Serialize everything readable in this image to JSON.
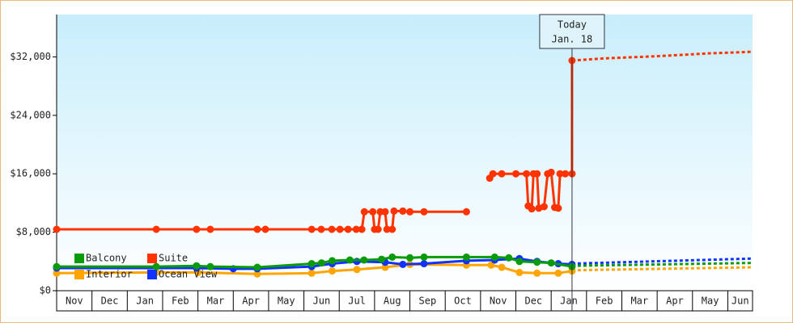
{
  "chart_data": {
    "type": "line",
    "xlim": [
      0,
      19.7
    ],
    "xticks": [
      {
        "value": 0,
        "label": "Nov"
      },
      {
        "value": 1,
        "label": "Dec"
      },
      {
        "value": 2,
        "label": "Jan"
      },
      {
        "value": 3,
        "label": "Feb"
      },
      {
        "value": 4,
        "label": "Mar"
      },
      {
        "value": 5,
        "label": "Apr"
      },
      {
        "value": 6,
        "label": "May"
      },
      {
        "value": 7,
        "label": "Jun"
      },
      {
        "value": 8,
        "label": "Jul"
      },
      {
        "value": 9,
        "label": "Aug"
      },
      {
        "value": 10,
        "label": "Sep"
      },
      {
        "value": 11,
        "label": "Oct"
      },
      {
        "value": 12,
        "label": "Nov"
      },
      {
        "value": 13,
        "label": "Dec"
      },
      {
        "value": 14,
        "label": "Jan"
      },
      {
        "value": 15,
        "label": "Feb"
      },
      {
        "value": 16,
        "label": "Mar"
      },
      {
        "value": 17,
        "label": "Apr"
      },
      {
        "value": 18,
        "label": "May"
      },
      {
        "value": 19,
        "label": "Jun"
      }
    ],
    "ylim": [
      0,
      37800
    ],
    "yticks": [
      {
        "value": 0,
        "label": "$0"
      },
      {
        "value": 8000,
        "label": "$8,000"
      },
      {
        "value": 16000,
        "label": "$16,000"
      },
      {
        "value": 24000,
        "label": "$24,000"
      },
      {
        "value": 32000,
        "label": "$32,000"
      }
    ],
    "legend": "lower left",
    "annotation": {
      "x": 14.59,
      "lines": [
        "Today",
        "Jan. 18"
      ]
    },
    "series": [
      {
        "name": "Balcony",
        "color": "#0a9a0a",
        "x": [
          0,
          2.82,
          3.96,
          4.35,
          5.68,
          7.22,
          7.5,
          7.8,
          8.3,
          8.7,
          9.2,
          9.5,
          10.0,
          10.4,
          11.6,
          12.4,
          12.8,
          13.1,
          13.6,
          14.0,
          14.59
        ],
        "values": [
          3300,
          3300,
          3400,
          3300,
          3200,
          3700,
          3800,
          4100,
          4200,
          4200,
          4300,
          4600,
          4500,
          4600,
          4600,
          4600,
          4500,
          4000,
          3900,
          3800,
          3300
        ],
        "forecast": {
          "x": [
            14.59,
            19.7
          ],
          "values": [
            3400,
            3800
          ]
        }
      },
      {
        "name": "Suite",
        "color": "#ff3300",
        "x": [
          0,
          2.82,
          3.96,
          4.35,
          5.68,
          5.91,
          7.22,
          7.49,
          7.79,
          8.02,
          8.25,
          8.48,
          8.64,
          8.71,
          8.95,
          9.0,
          9.1,
          9.16,
          9.3,
          9.35,
          9.5,
          9.55,
          9.8,
          10.0,
          10.4,
          11.6,
          12.0,
          12.26,
          12.35,
          12.6,
          13.0,
          13.3,
          13.35,
          13.45,
          13.5,
          13.6,
          13.65,
          13.8,
          13.9,
          14.0,
          14.1,
          14.2,
          14.25,
          14.4,
          14.59,
          14.59
        ],
        "values": [
          8400,
          8400,
          8400,
          8400,
          8400,
          8400,
          8400,
          8400,
          8400,
          8400,
          8400,
          8400,
          8400,
          10800,
          10800,
          8400,
          8400,
          10800,
          10800,
          8400,
          8400,
          10900,
          10900,
          10800,
          10800,
          10800,
          null,
          15400,
          16000,
          16000,
          16000,
          16000,
          11600,
          11200,
          16000,
          16000,
          11300,
          11500,
          16000,
          16200,
          11400,
          11300,
          16000,
          16000,
          16000,
          31500
        ],
        "forecast": {
          "x": [
            14.59,
            15.5,
            17,
            18.5,
            19.7
          ],
          "values": [
            31500,
            31800,
            32100,
            32500,
            32700
          ]
        }
      },
      {
        "name": "Interior",
        "color": "#ffa500",
        "x": [
          0,
          2.82,
          4.0,
          5.68,
          7.22,
          7.8,
          8.5,
          9.3,
          10.0,
          11.6,
          12.3,
          12.6,
          13.1,
          13.6,
          14.2,
          14.59
        ],
        "values": [
          2400,
          2500,
          2500,
          2300,
          2400,
          2700,
          2900,
          3200,
          3600,
          3500,
          3500,
          3200,
          2500,
          2400,
          2400,
          2700
        ],
        "forecast": {
          "x": [
            14.59,
            19.7
          ],
          "values": [
            2800,
            3200
          ]
        }
      },
      {
        "name": "Ocean View",
        "color": "#1133ff",
        "x": [
          0,
          3.96,
          5.0,
          5.68,
          7.22,
          7.8,
          8.5,
          9.3,
          9.8,
          10.4,
          11.6,
          12.4,
          13.1,
          13.6,
          14.2,
          14.59
        ],
        "values": [
          3100,
          3100,
          3000,
          3000,
          3300,
          3700,
          4000,
          3900,
          3600,
          3700,
          4100,
          4200,
          4400,
          4000,
          3700,
          3600
        ],
        "forecast": {
          "x": [
            14.59,
            19.7
          ],
          "values": [
            3700,
            4400
          ]
        }
      }
    ]
  }
}
